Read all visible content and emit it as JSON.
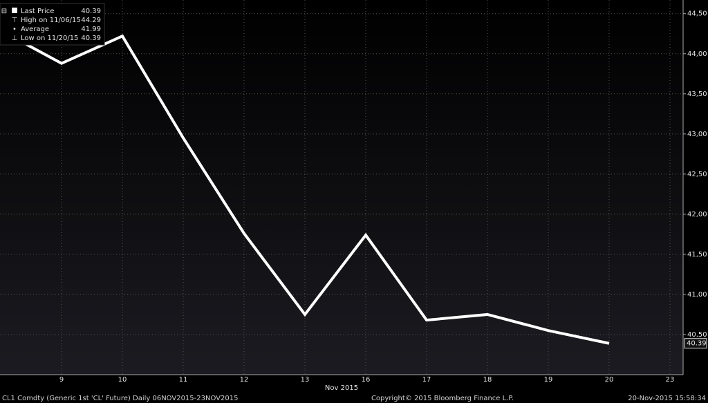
{
  "chart_data": {
    "type": "line",
    "x_label": "Nov 2015",
    "categories": [
      null,
      "9",
      "10",
      "11",
      "12",
      "13",
      "16",
      "17",
      "18",
      "19",
      "20",
      "23"
    ],
    "series": [
      {
        "name": "Last Price",
        "color": "#ffffff",
        "values": [
          44.29,
          43.88,
          44.22,
          42.95,
          41.76,
          40.75,
          41.74,
          40.68,
          40.75,
          40.55,
          40.39,
          null
        ]
      }
    ],
    "stats": [
      {
        "label": "High on 11/06/15",
        "value": 44.29
      },
      {
        "label": "Average",
        "value": 41.99
      },
      {
        "label": "Low on 11/20/15",
        "value": 40.39
      }
    ],
    "ylim": [
      40.0,
      44.67
    ],
    "yticks": [
      {
        "value": 40.5,
        "label": "40,50"
      },
      {
        "value": 41.0,
        "label": "41,00"
      },
      {
        "value": 41.5,
        "label": "41,50"
      },
      {
        "value": 42.0,
        "label": "42,00"
      },
      {
        "value": 42.5,
        "label": "42,50"
      },
      {
        "value": 43.0,
        "label": "43,00"
      },
      {
        "value": 43.5,
        "label": "43,50"
      },
      {
        "value": 44.0,
        "label": "44,00"
      },
      {
        "value": 44.5,
        "label": "44,50"
      }
    ],
    "grid": true,
    "footer": {
      "left": "CL1 Comdty (Generic 1st 'CL' Future)  Daily 06NOV2015-23NOV2015",
      "center": "Copyright© 2015 Bloomberg Finance L.P.",
      "right": "20-Nov-2015 15:58:34"
    }
  }
}
